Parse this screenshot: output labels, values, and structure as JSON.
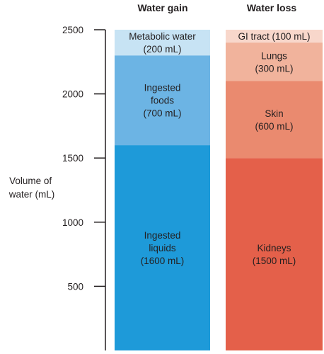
{
  "chart_data": {
    "type": "bar",
    "stacked": true,
    "ylabel": [
      "Volume of",
      "water (mL)"
    ],
    "yticks": [
      500,
      1000,
      1500,
      2000,
      2500
    ],
    "ylim": [
      0,
      2500
    ],
    "grid": false,
    "columns": [
      {
        "title": "Water gain",
        "segments": [
          {
            "label": [
              "Ingested",
              "liquids",
              "(1600 mL)"
            ],
            "value": 1600,
            "color": "#1e9ad9"
          },
          {
            "label": [
              "Ingested",
              "foods",
              "(700 mL)"
            ],
            "value": 700,
            "color": "#6cb4e4"
          },
          {
            "label": [
              "Metabolic water",
              "(200 mL)"
            ],
            "value": 200,
            "color": "#c7e3f4"
          }
        ]
      },
      {
        "title": "Water loss",
        "segments": [
          {
            "label": [
              "Kidneys",
              "(1500 mL)"
            ],
            "value": 1500,
            "color": "#e4604a"
          },
          {
            "label": [
              "Skin",
              "(600 mL)"
            ],
            "value": 600,
            "color": "#ea8a6f"
          },
          {
            "label": [
              "Lungs",
              "(300 mL)"
            ],
            "value": 300,
            "color": "#f1b39c"
          },
          {
            "label": [
              "GI tract (100 mL)"
            ],
            "value": 100,
            "color": "#f8d7cb"
          }
        ]
      }
    ]
  }
}
